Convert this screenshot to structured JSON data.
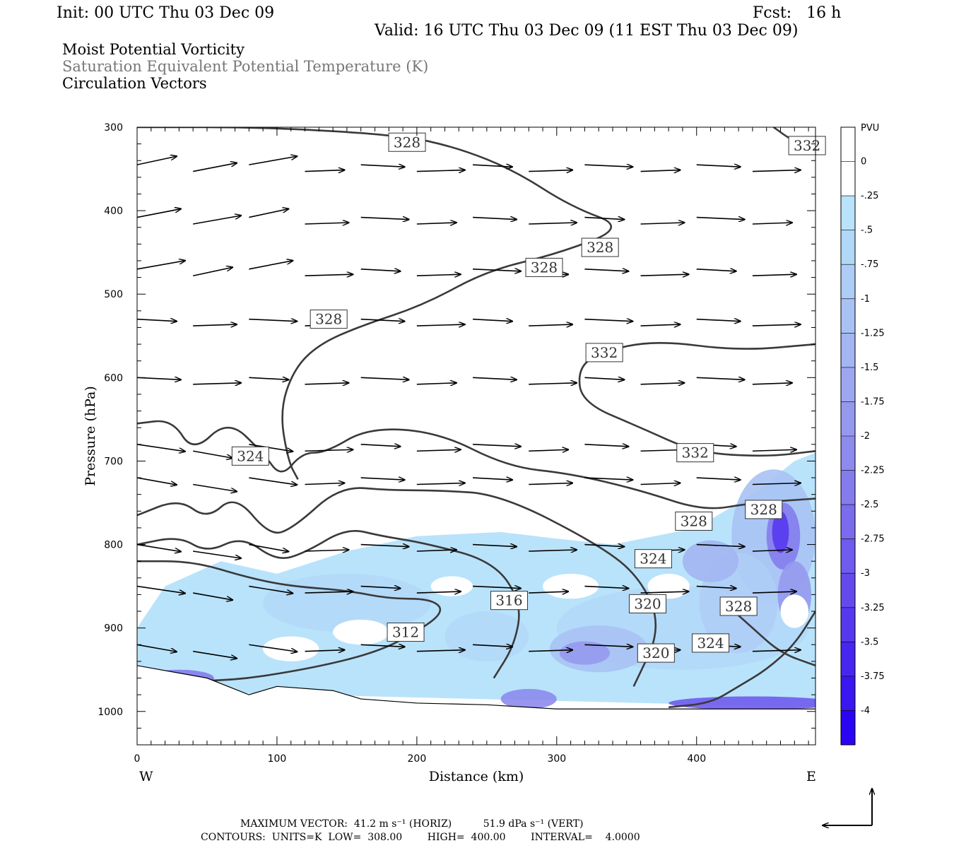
{
  "header": {
    "init": "Init: 00 UTC Thu 03 Dec 09",
    "fcst": "Fcst:   16 h",
    "valid": "Valid: 16 UTC Thu 03 Dec 09 (11 EST Thu 03 Dec 09)",
    "field1": "Moist Potential Vorticity",
    "field2": "Saturation Equivalent Potential Temperature (K)",
    "field3": "Circulation Vectors"
  },
  "footer": {
    "max_vector": "MAXIMUM VECTOR:  41.2 m s⁻¹ (HORIZ)          51.9 dPa s⁻¹ (VERT)",
    "contours": "CONTOURS:  UNITS=K  LOW=  308.00        HIGH=  400.00        INTERVAL=    4.0000"
  },
  "chart_data": {
    "type": "cross-section",
    "xlabel": "Distance (km)",
    "ylabel": "Pressure (hPa)",
    "xlim": [
      0,
      485
    ],
    "ylim": [
      300,
      1040
    ],
    "x_ticks": [
      0,
      100,
      200,
      300,
      400
    ],
    "y_ticks": [
      300,
      400,
      500,
      600,
      700,
      800,
      900,
      1000
    ],
    "west_label": "W",
    "east_label": "E",
    "colorbar": {
      "units": "PVU",
      "labels": [
        "0",
        "-.25",
        "-.5",
        "-.75",
        "-1",
        "-1.25",
        "-1.5",
        "-1.75",
        "-2",
        "-2.25",
        "-2.5",
        "-2.75",
        "-3",
        "-3.25",
        "-3.5",
        "-3.75",
        "-4"
      ],
      "colors": [
        "#ffffff",
        "#ffffff",
        "#b9e3fb",
        "#b2d8f8",
        "#aecdf6",
        "#a9c2f4",
        "#a3b5f2",
        "#9da7f0",
        "#9599ee",
        "#8d8bed",
        "#847ced",
        "#7a6ced",
        "#6f5bed",
        "#634aed",
        "#5638ee",
        "#4826ef",
        "#3a16f1",
        "#2a05f4"
      ]
    },
    "contour_labels": [
      {
        "text": "328",
        "x": 193,
        "p": 318
      },
      {
        "text": "332",
        "x": 479,
        "p": 322
      },
      {
        "text": "328",
        "x": 331,
        "p": 444
      },
      {
        "text": "328",
        "x": 291,
        "p": 468
      },
      {
        "text": "328",
        "x": 137,
        "p": 530
      },
      {
        "text": "332",
        "x": 334,
        "p": 570
      },
      {
        "text": "324",
        "x": 81,
        "p": 694
      },
      {
        "text": "332",
        "x": 399,
        "p": 690
      },
      {
        "text": "328",
        "x": 398,
        "p": 772
      },
      {
        "text": "328",
        "x": 448,
        "p": 758
      },
      {
        "text": "324",
        "x": 369,
        "p": 817
      },
      {
        "text": "316",
        "x": 266,
        "p": 867
      },
      {
        "text": "320",
        "x": 365,
        "p": 871
      },
      {
        "text": "328",
        "x": 430,
        "p": 874
      },
      {
        "text": "312",
        "x": 192,
        "p": 905
      },
      {
        "text": "324",
        "x": 410,
        "p": 918
      },
      {
        "text": "320",
        "x": 371,
        "p": 930
      }
    ],
    "contours_theta_es": [
      {
        "level": 328,
        "points": [
          [
            0,
            300
          ],
          [
            95,
            300
          ],
          [
            190,
            310
          ],
          [
            230,
            325
          ],
          [
            270,
            352
          ],
          [
            310,
            395
          ],
          [
            350,
            420
          ],
          [
            300,
            452
          ],
          [
            250,
            472
          ],
          [
            205,
            513
          ],
          [
            160,
            538
          ],
          [
            130,
            560
          ],
          [
            112,
            590
          ],
          [
            102,
            640
          ],
          [
            108,
            700
          ],
          [
            115,
            722
          ]
        ]
      },
      {
        "level": 332,
        "points": [
          [
            455,
            300
          ],
          [
            470,
            318
          ],
          [
            485,
            324
          ]
        ]
      },
      {
        "level": 332,
        "points": [
          [
            485,
            560
          ],
          [
            430,
            568
          ],
          [
            370,
            555
          ],
          [
            330,
            570
          ],
          [
            315,
            590
          ],
          [
            318,
            630
          ],
          [
            360,
            660
          ],
          [
            400,
            690
          ],
          [
            450,
            695
          ],
          [
            485,
            688
          ]
        ]
      },
      {
        "level": 324,
        "points": [
          [
            0,
            655
          ],
          [
            25,
            650
          ],
          [
            40,
            690
          ],
          [
            65,
            650
          ],
          [
            90,
            690
          ],
          [
            103,
            720
          ],
          [
            118,
            690
          ],
          [
            135,
            690
          ],
          [
            165,
            660
          ],
          [
            215,
            665
          ],
          [
            265,
            707
          ],
          [
            310,
            715
          ],
          [
            360,
            735
          ],
          [
            405,
            760
          ],
          [
            440,
            750
          ],
          [
            485,
            745
          ]
        ]
      },
      {
        "level": 320,
        "points": [
          [
            0,
            765
          ],
          [
            30,
            745
          ],
          [
            50,
            770
          ],
          [
            70,
            740
          ],
          [
            95,
            790
          ],
          [
            112,
            780
          ],
          [
            145,
            730
          ],
          [
            180,
            735
          ],
          [
            215,
            735
          ],
          [
            260,
            740
          ],
          [
            330,
            800
          ],
          [
            360,
            840
          ],
          [
            375,
            900
          ],
          [
            355,
            970
          ]
        ]
      },
      {
        "level": 316,
        "points": [
          [
            0,
            800
          ],
          [
            30,
            790
          ],
          [
            50,
            810
          ],
          [
            75,
            790
          ],
          [
            100,
            820
          ],
          [
            120,
            810
          ],
          [
            150,
            780
          ],
          [
            175,
            790
          ],
          [
            205,
            798
          ],
          [
            255,
            820
          ],
          [
            275,
            870
          ],
          [
            270,
            920
          ],
          [
            255,
            960
          ]
        ]
      },
      {
        "level": 312,
        "points": [
          [
            0,
            820
          ],
          [
            40,
            820
          ],
          [
            80,
            840
          ],
          [
            110,
            850
          ],
          [
            150,
            855
          ],
          [
            180,
            865
          ],
          [
            210,
            865
          ],
          [
            220,
            880
          ],
          [
            200,
            905
          ],
          [
            170,
            930
          ],
          [
            120,
            950
          ],
          [
            60,
            965
          ],
          [
            0,
            960
          ]
        ]
      },
      {
        "level": 324,
        "points": [
          [
            485,
            880
          ],
          [
            470,
            920
          ],
          [
            450,
            950
          ],
          [
            430,
            970
          ],
          [
            410,
            990
          ],
          [
            380,
            995
          ]
        ]
      },
      {
        "level": 328,
        "points": [
          [
            420,
            870
          ],
          [
            440,
            900
          ],
          [
            460,
            930
          ],
          [
            485,
            945
          ]
        ]
      }
    ],
    "vectors_note": "Circulation vectors point generally eastward (left to right) throughout the section",
    "ground_surface": [
      [
        0,
        945
      ],
      [
        50,
        960
      ],
      [
        80,
        980
      ],
      [
        100,
        970
      ],
      [
        140,
        975
      ],
      [
        160,
        985
      ],
      [
        200,
        990
      ],
      [
        250,
        992
      ],
      [
        300,
        997
      ],
      [
        400,
        997
      ],
      [
        485,
        997
      ]
    ]
  }
}
